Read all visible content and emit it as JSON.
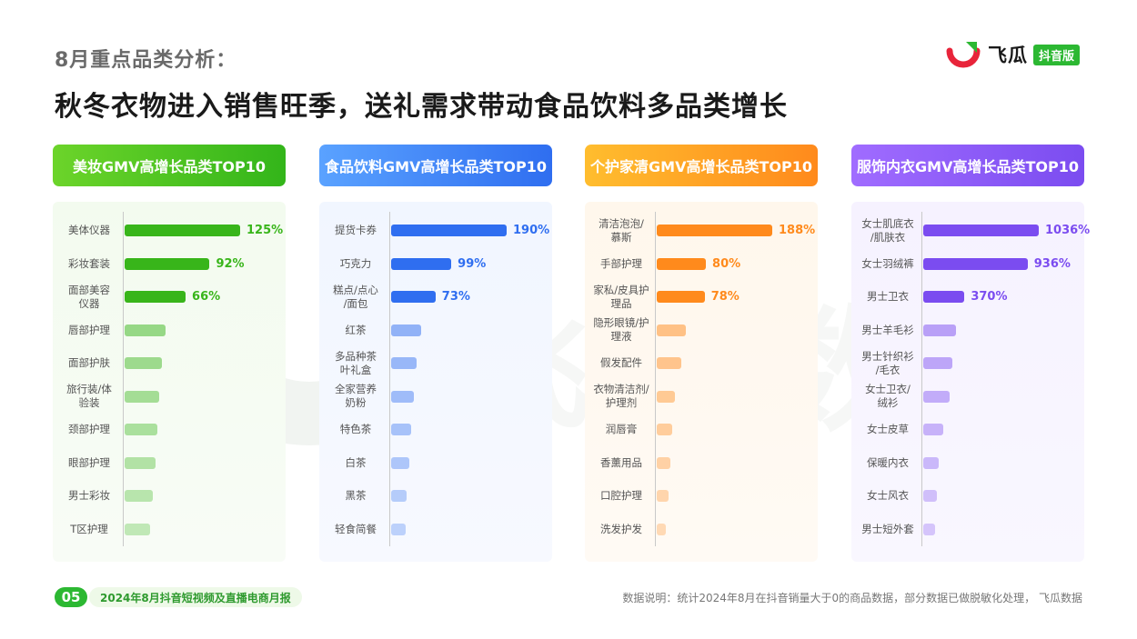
{
  "header": {
    "subtitle": "8月重点品类分析：",
    "title": "秋冬衣物进入销售旺季，送礼需求带动食品饮料多品类增长"
  },
  "logo": {
    "text": "飞瓜",
    "badge": "抖音版",
    "icon": "feigua-logo-icon"
  },
  "watermark": {
    "text": "飞瓜数据"
  },
  "footer": {
    "page_number": "05",
    "report_name": "2024年8月抖音短视频及直播电商月报",
    "note": "数据说明：统计2024年8月在抖音销量大于0的商品数据，部分数据已做脱敏化处理， 飞瓜数据"
  },
  "colors": {
    "beauty": "#38b51a",
    "food": "#2f6ef0",
    "personal_care": "#ff8a1c",
    "apparel": "#7b4cf0"
  },
  "chart_data": [
    {
      "type": "bar",
      "orientation": "horizontal",
      "title": "美妆GMV高增长品类TOP10",
      "categories": [
        "美体仪器",
        "彩妆套装",
        "面部美容\n仪器",
        "唇部护理",
        "面部护肤",
        "旅行装/体\n验装",
        "颈部护理",
        "眼部护理",
        "男士彩妆",
        "T区护理"
      ],
      "values": [
        125,
        92,
        66,
        44,
        40,
        37,
        35,
        33,
        31,
        28
      ],
      "value_labels": [
        "125%",
        "92%",
        "66%",
        "",
        "",
        "",
        "",
        "",
        "",
        ""
      ],
      "color": "#38b51a"
    },
    {
      "type": "bar",
      "orientation": "horizontal",
      "title": "食品饮料GMV高增长品类TOP10",
      "categories": [
        "提货卡券",
        "巧克力",
        "糕点/点心\n/面包",
        "红茶",
        "多品种茶\n叶礼盒",
        "全家营养\n奶粉",
        "特色茶",
        "白茶",
        "黑茶",
        "轻食简餐"
      ],
      "values": [
        190,
        99,
        73,
        50,
        42,
        37,
        33,
        30,
        26,
        24
      ],
      "value_labels": [
        "190%",
        "99%",
        "73%",
        "",
        "",
        "",
        "",
        "",
        "",
        ""
      ],
      "color": "#2f6ef0"
    },
    {
      "type": "bar",
      "orientation": "horizontal",
      "title": "个护家清GMV高增长品类TOP10",
      "categories": [
        "清洁泡泡/\n慕斯",
        "手部护理",
        "家私/皮具护\n理品",
        "隐形眼镜/护\n理液",
        "假发配件",
        "衣物清洁剂/\n护理剂",
        "润唇膏",
        "香薰用品",
        "口腔护理",
        "洗发护发"
      ],
      "values": [
        188,
        80,
        78,
        48,
        40,
        30,
        25,
        22,
        19,
        15
      ],
      "value_labels": [
        "188%",
        "80%",
        "78%",
        "",
        "",
        "",
        "",
        "",
        "",
        ""
      ],
      "color": "#ff8a1c"
    },
    {
      "type": "bar",
      "orientation": "horizontal",
      "title": "服饰内衣GMV高增长品类TOP10",
      "categories": [
        "女士肌底衣\n/肌肤衣",
        "女士羽绒裤",
        "男士卫衣",
        "男士羊毛衫",
        "男士针织衫\n/毛衣",
        "女士卫衣/\n绒衫",
        "女士皮草",
        "保暖内衣",
        "女士风衣",
        "男士短外套"
      ],
      "values": [
        1036,
        936,
        370,
        290,
        260,
        240,
        180,
        140,
        120,
        110
      ],
      "value_labels": [
        "1036%",
        "936%",
        "370%",
        "",
        "",
        "",
        "",
        "",
        "",
        ""
      ],
      "color": "#7b4cf0"
    }
  ]
}
